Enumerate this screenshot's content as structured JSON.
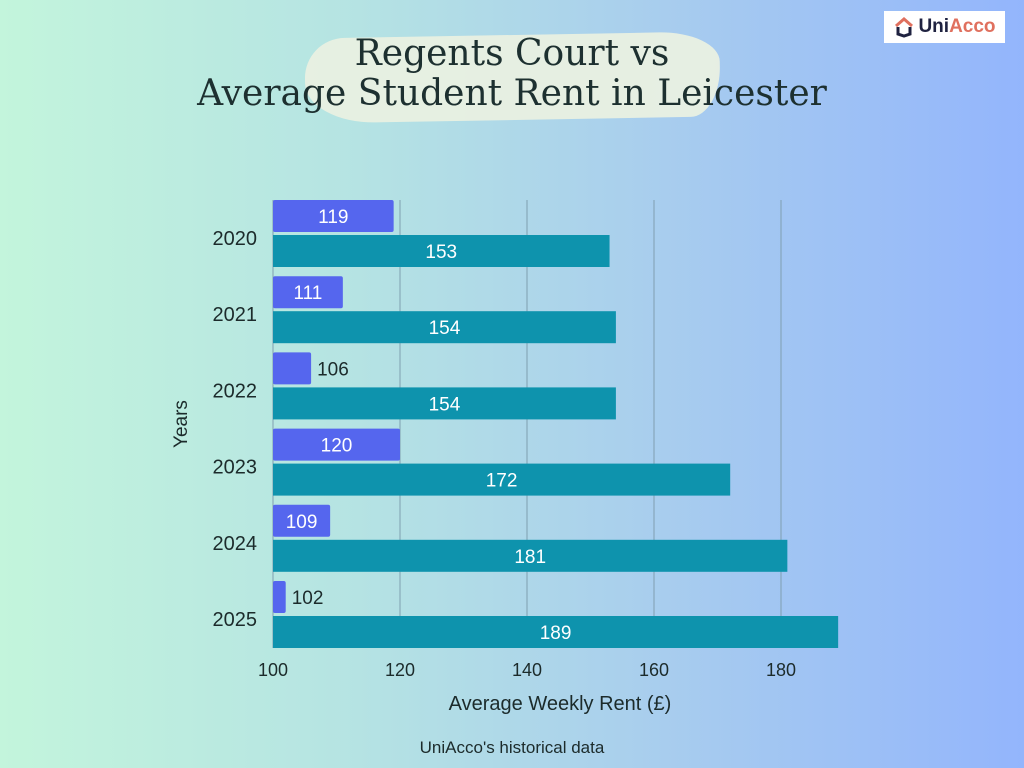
{
  "logo": {
    "text": "UniAcco",
    "icon": "house-icon"
  },
  "chart_data": {
    "type": "bar",
    "orientation": "horizontal",
    "title": "Regents Court vs\nAverage Student Rent in Leicester",
    "title_lines": [
      "Regents Court vs",
      "Average Student Rent in Leicester"
    ],
    "xlabel": "Average Weekly Rent (£)",
    "ylabel": "Years",
    "categories": [
      "2020",
      "2021",
      "2022",
      "2023",
      "2024",
      "2025"
    ],
    "series": [
      {
        "values": [
          119,
          111,
          106,
          120,
          109,
          102
        ],
        "color": "#5566ee"
      },
      {
        "values": [
          153,
          154,
          154,
          172,
          181,
          189
        ],
        "color": "#0e93ad"
      }
    ],
    "xlim": [
      100,
      190
    ],
    "xticks": [
      100,
      120,
      140,
      160,
      180
    ],
    "grid": true,
    "legend": "none"
  },
  "footer": "UniAcco's historical data"
}
